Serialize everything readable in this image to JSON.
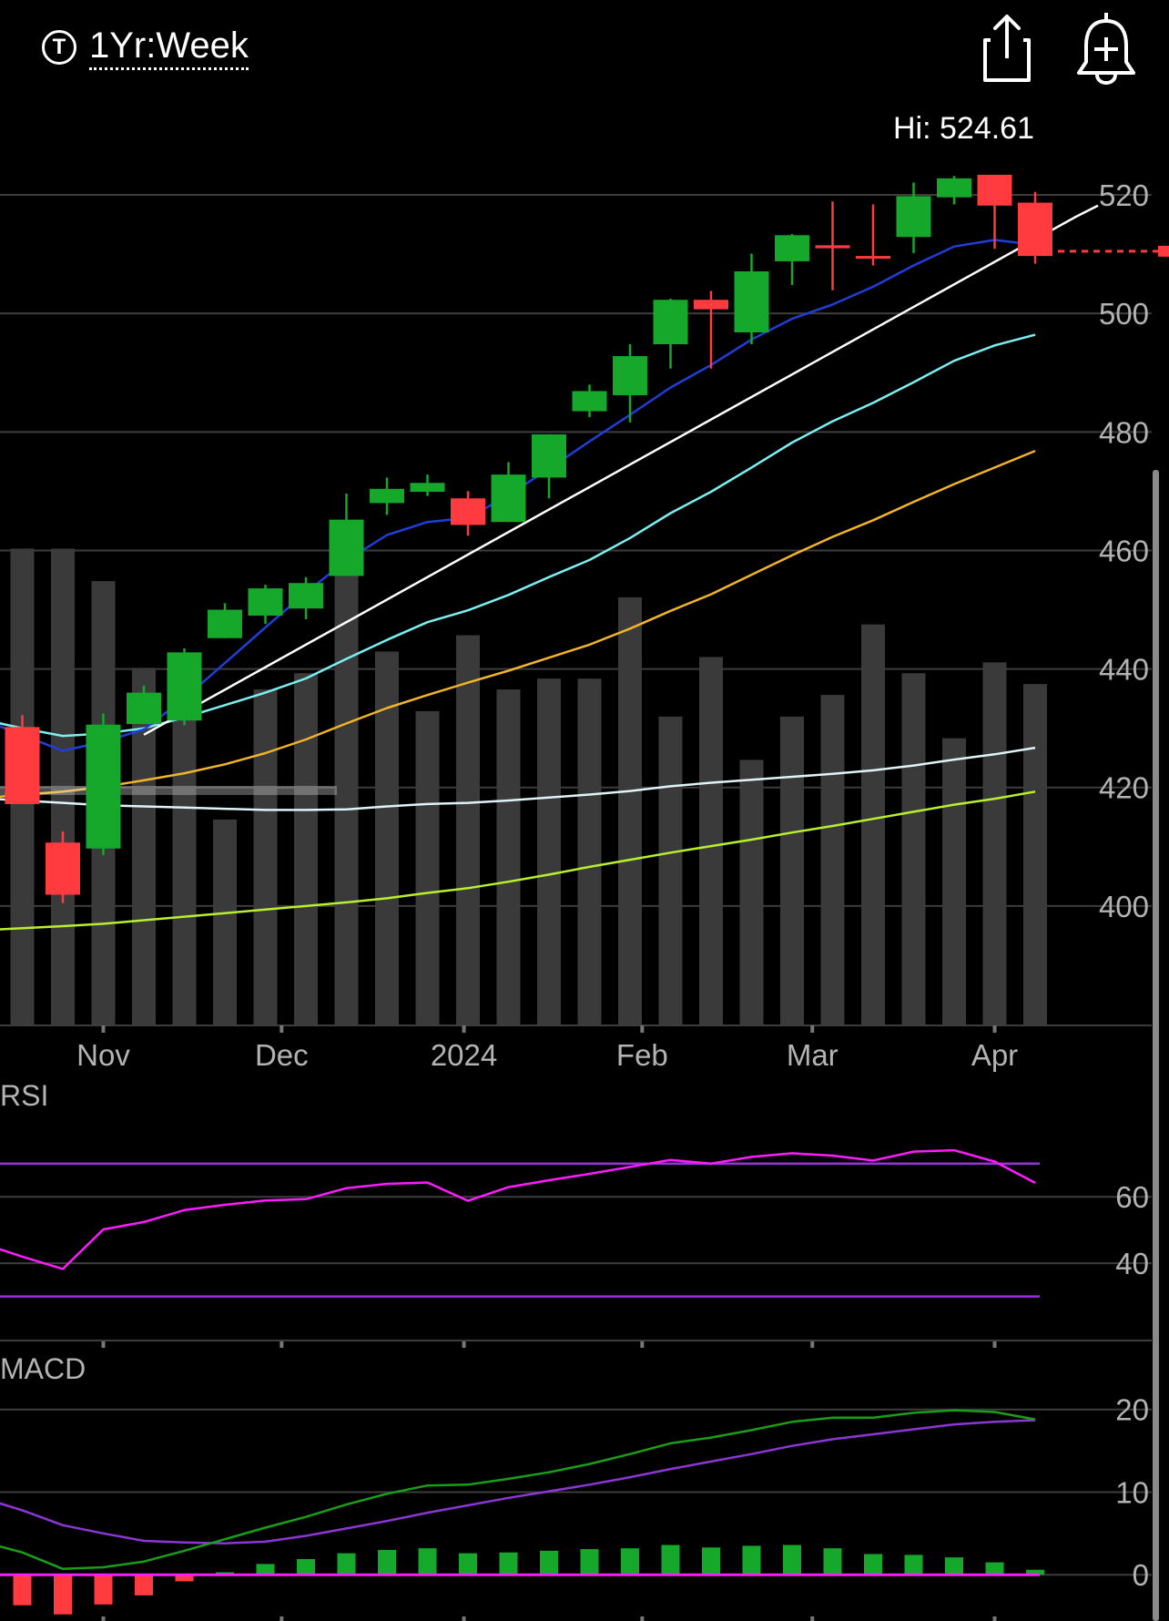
{
  "header": {
    "range_label": "1Yr:Week",
    "range_icon_letter": "T",
    "share_icon": "share-icon",
    "alert_icon": "add-alert-bell-icon"
  },
  "colors": {
    "up": "#15a82b",
    "down": "#ff3b3f",
    "volume": "#3a3a3a",
    "grid": "#3d3d3d",
    "ma_blue": "#1f3fd8",
    "trendline": "#ffffff",
    "ma_cyan": "#7af0f0",
    "ma_yellow": "#f2b52a",
    "ma_white": "#dff3f8",
    "ma_lime": "#b8f02e",
    "rsi_line": "#ff1cff",
    "rsi_band": "#9b2fe0",
    "macd_line": "#1a9e1a",
    "macd_signal": "#8d36d6",
    "macd_zero": "#ff1cff"
  },
  "chart_data": [
    {
      "type": "candlestick",
      "hi_label": "Hi: 524.61",
      "ylim": [
        378,
        528
      ],
      "yticks": [
        400,
        420,
        440,
        460,
        480,
        500,
        520
      ],
      "x_tick_labels": [
        "Nov",
        "Dec",
        "2024",
        "Feb",
        "Mar",
        "Apr"
      ],
      "x_tick_weeks": [
        2,
        6.4,
        10.9,
        15.3,
        19.5,
        24
      ],
      "last_price": 510.5,
      "candles": [
        {
          "w": 0,
          "o": 430.2,
          "c": 417.2,
          "h": 432.2,
          "l": 417.2
        },
        {
          "w": 1,
          "o": 410.7,
          "c": 401.9,
          "h": 412.6,
          "l": 400.5
        },
        {
          "w": 2,
          "o": 409.7,
          "c": 430.6,
          "h": 432.5,
          "l": 408.6
        },
        {
          "w": 3,
          "o": 430.7,
          "c": 436.0,
          "h": 437.2,
          "l": 430.7
        },
        {
          "w": 4,
          "o": 431.3,
          "c": 442.8,
          "h": 443.5,
          "l": 430.5
        },
        {
          "w": 5,
          "o": 445.2,
          "c": 450.0,
          "h": 451.1,
          "l": 445.2
        },
        {
          "w": 6,
          "o": 449.0,
          "c": 453.6,
          "h": 454.2,
          "l": 447.6
        },
        {
          "w": 7,
          "o": 450.2,
          "c": 454.5,
          "h": 455.5,
          "l": 448.4
        },
        {
          "w": 8,
          "o": 455.7,
          "c": 465.2,
          "h": 469.6,
          "l": 455.7
        },
        {
          "w": 9,
          "o": 468.0,
          "c": 470.4,
          "h": 472.3,
          "l": 466.0
        },
        {
          "w": 10,
          "o": 469.9,
          "c": 471.4,
          "h": 472.8,
          "l": 469.2
        },
        {
          "w": 11,
          "o": 468.8,
          "c": 464.3,
          "h": 470.0,
          "l": 462.5
        },
        {
          "w": 12,
          "o": 464.8,
          "c": 472.8,
          "h": 474.9,
          "l": 464.8
        },
        {
          "w": 13,
          "o": 472.3,
          "c": 479.6,
          "h": 479.6,
          "l": 468.8
        },
        {
          "w": 14,
          "o": 483.5,
          "c": 486.9,
          "h": 488.0,
          "l": 482.5
        },
        {
          "w": 15,
          "o": 486.2,
          "c": 492.8,
          "h": 494.8,
          "l": 481.6
        },
        {
          "w": 16,
          "o": 494.8,
          "c": 502.3,
          "h": 502.5,
          "l": 490.7
        },
        {
          "w": 17,
          "o": 502.3,
          "c": 500.7,
          "h": 503.8,
          "l": 490.7
        },
        {
          "w": 18,
          "o": 496.8,
          "c": 507.1,
          "h": 510.1,
          "l": 494.8
        },
        {
          "w": 19,
          "o": 508.8,
          "c": 513.2,
          "h": 513.4,
          "l": 504.8
        },
        {
          "w": 20,
          "o": 511.5,
          "c": 511.0,
          "h": 518.9,
          "l": 503.9
        },
        {
          "w": 21,
          "o": 509.7,
          "c": 509.3,
          "h": 518.4,
          "l": 508.1
        },
        {
          "w": 22,
          "o": 512.9,
          "c": 519.8,
          "h": 522.1,
          "l": 510.2
        },
        {
          "w": 23,
          "o": 519.6,
          "c": 522.8,
          "h": 523.2,
          "l": 518.4
        },
        {
          "w": 24,
          "o": 523.4,
          "c": 518.2,
          "h": 523.4,
          "l": 510.9
        },
        {
          "w": 25,
          "o": 518.7,
          "c": 509.7,
          "h": 520.5,
          "l": 508.4
        }
      ],
      "volume": [
        88,
        88,
        82,
        66,
        62,
        38,
        62,
        65,
        88,
        69,
        58,
        72,
        62,
        64,
        64,
        79,
        57,
        68,
        49,
        57,
        61,
        74,
        65,
        53,
        67,
        63
      ],
      "overlays": {
        "ma_blue": [
          [
            -1,
            431.5
          ],
          [
            1,
            426.2
          ],
          [
            2,
            427.7
          ],
          [
            3,
            429.8
          ],
          [
            4,
            435.0
          ],
          [
            5,
            441.0
          ],
          [
            6,
            447.0
          ],
          [
            7,
            452.9
          ],
          [
            8,
            458.3
          ],
          [
            9,
            462.6
          ],
          [
            10,
            464.8
          ],
          [
            11,
            465.5
          ],
          [
            12,
            469.3
          ],
          [
            13,
            473.8
          ],
          [
            14,
            478.4
          ],
          [
            15,
            482.9
          ],
          [
            16,
            487.5
          ],
          [
            17,
            491.3
          ],
          [
            18,
            495.6
          ],
          [
            19,
            499.1
          ],
          [
            20,
            501.5
          ],
          [
            21,
            504.5
          ],
          [
            22,
            508.1
          ],
          [
            23,
            511.3
          ],
          [
            24,
            512.4
          ],
          [
            25,
            511.6
          ]
        ],
        "trendline": [
          [
            3,
            428.9
          ],
          [
            26,
            516.3
          ],
          [
            26.55,
            518.2
          ]
        ],
        "ma_cyan": [
          [
            -1,
            431.5
          ],
          [
            0,
            430.0
          ],
          [
            1,
            428.7
          ],
          [
            2,
            429.1
          ],
          [
            3,
            430.0
          ],
          [
            4,
            431.8
          ],
          [
            5,
            433.9
          ],
          [
            6,
            436.0
          ],
          [
            7,
            438.4
          ],
          [
            8,
            441.7
          ],
          [
            9,
            444.9
          ],
          [
            10,
            447.9
          ],
          [
            11,
            449.9
          ],
          [
            12,
            452.5
          ],
          [
            13,
            455.5
          ],
          [
            14,
            458.4
          ],
          [
            15,
            462.1
          ],
          [
            16,
            466.3
          ],
          [
            17,
            469.9
          ],
          [
            18,
            474.0
          ],
          [
            19,
            478.2
          ],
          [
            20,
            481.8
          ],
          [
            21,
            484.9
          ],
          [
            22,
            488.4
          ],
          [
            23,
            492.0
          ],
          [
            24,
            494.6
          ],
          [
            25,
            496.4
          ]
        ],
        "ma_yellow": [
          [
            -1,
            418.2
          ],
          [
            1,
            419.3
          ],
          [
            2,
            420.1
          ],
          [
            3,
            421.2
          ],
          [
            4,
            422.4
          ],
          [
            5,
            423.9
          ],
          [
            6,
            425.8
          ],
          [
            7,
            428.1
          ],
          [
            8,
            430.8
          ],
          [
            9,
            433.4
          ],
          [
            10,
            435.6
          ],
          [
            11,
            437.7
          ],
          [
            12,
            439.7
          ],
          [
            13,
            441.9
          ],
          [
            14,
            444.1
          ],
          [
            15,
            446.8
          ],
          [
            16,
            449.8
          ],
          [
            17,
            452.6
          ],
          [
            18,
            455.9
          ],
          [
            19,
            459.2
          ],
          [
            20,
            462.3
          ],
          [
            21,
            465.1
          ],
          [
            22,
            468.2
          ],
          [
            23,
            471.2
          ],
          [
            24,
            474.0
          ],
          [
            25,
            476.8
          ]
        ],
        "ma_white": [
          [
            -1,
            418.2
          ],
          [
            1,
            417.4
          ],
          [
            2,
            417.0
          ],
          [
            3,
            416.8
          ],
          [
            4,
            416.6
          ],
          [
            5,
            416.4
          ],
          [
            6,
            416.2
          ],
          [
            7,
            416.2
          ],
          [
            8,
            416.3
          ],
          [
            9,
            416.8
          ],
          [
            10,
            417.2
          ],
          [
            11,
            417.4
          ],
          [
            12,
            417.8
          ],
          [
            13,
            418.3
          ],
          [
            14,
            418.8
          ],
          [
            15,
            419.4
          ],
          [
            16,
            420.2
          ],
          [
            17,
            420.8
          ],
          [
            18,
            421.3
          ],
          [
            19,
            421.8
          ],
          [
            20,
            422.3
          ],
          [
            21,
            422.9
          ],
          [
            22,
            423.7
          ],
          [
            23,
            424.7
          ],
          [
            24,
            425.6
          ],
          [
            25,
            426.7
          ]
        ],
        "ma_lime": [
          [
            -1,
            395.9
          ],
          [
            1,
            396.6
          ],
          [
            2,
            397.0
          ],
          [
            3,
            397.6
          ],
          [
            4,
            398.2
          ],
          [
            5,
            398.8
          ],
          [
            6,
            399.4
          ],
          [
            7,
            400.0
          ],
          [
            8,
            400.6
          ],
          [
            9,
            401.3
          ],
          [
            10,
            402.2
          ],
          [
            11,
            403.0
          ],
          [
            12,
            404.1
          ],
          [
            13,
            405.3
          ],
          [
            14,
            406.6
          ],
          [
            15,
            407.8
          ],
          [
            16,
            409.0
          ],
          [
            17,
            410.1
          ],
          [
            18,
            411.2
          ],
          [
            19,
            412.4
          ],
          [
            20,
            413.5
          ],
          [
            21,
            414.7
          ],
          [
            22,
            415.9
          ],
          [
            23,
            417.1
          ],
          [
            24,
            418.1
          ],
          [
            25,
            419.3
          ]
        ]
      }
    },
    {
      "type": "line",
      "title": "RSI",
      "ylim": [
        17.3,
        91.3
      ],
      "yticks": [
        40,
        60
      ],
      "band_levels": [
        30,
        70
      ],
      "series": [
        {
          "values": [
            [
              -1,
              46.0
            ],
            [
              0,
              42.0
            ],
            [
              1,
              38.3
            ],
            [
              2,
              50.2
            ],
            [
              3,
              52.4
            ],
            [
              4,
              56.0
            ],
            [
              5,
              57.6
            ],
            [
              6,
              58.9
            ],
            [
              7,
              59.3
            ],
            [
              8,
              62.6
            ],
            [
              9,
              63.9
            ],
            [
              10,
              64.3
            ],
            [
              11,
              58.8
            ],
            [
              12,
              62.9
            ],
            [
              13,
              65.0
            ],
            [
              14,
              66.9
            ],
            [
              15,
              69.0
            ],
            [
              16,
              71.1
            ],
            [
              17,
              70.0
            ],
            [
              18,
              72.0
            ],
            [
              19,
              73.1
            ],
            [
              20,
              72.4
            ],
            [
              21,
              70.9
            ],
            [
              22,
              73.6
            ],
            [
              23,
              74.0
            ],
            [
              24,
              70.6
            ],
            [
              25,
              64.2
            ]
          ]
        }
      ]
    },
    {
      "type": "line+bar",
      "title": "MACD",
      "ylim": [
        -5.6,
        24.6
      ],
      "yticks": [
        0,
        10,
        20
      ],
      "series": [
        {
          "values": [
            [
              -1,
              4.0
            ],
            [
              0,
              2.7
            ],
            [
              1,
              0.7
            ],
            [
              2,
              0.9
            ],
            [
              3,
              1.6
            ],
            [
              4,
              2.9
            ],
            [
              5,
              4.3
            ],
            [
              6,
              5.7
            ],
            [
              7,
              7.0
            ],
            [
              8,
              8.5
            ],
            [
              9,
              9.8
            ],
            [
              10,
              10.8
            ],
            [
              11,
              10.9
            ],
            [
              12,
              11.6
            ],
            [
              13,
              12.4
            ],
            [
              14,
              13.4
            ],
            [
              15,
              14.6
            ],
            [
              16,
              15.9
            ],
            [
              17,
              16.6
            ],
            [
              18,
              17.5
            ],
            [
              19,
              18.5
            ],
            [
              20,
              19.0
            ],
            [
              21,
              19.0
            ],
            [
              22,
              19.6
            ],
            [
              23,
              19.9
            ],
            [
              24,
              19.7
            ],
            [
              25,
              18.8
            ]
          ]
        },
        {
          "values": [
            [
              -1,
              9.3
            ],
            [
              0,
              7.8
            ],
            [
              1,
              6.0
            ],
            [
              2,
              5.0
            ],
            [
              3,
              4.1
            ],
            [
              4,
              3.9
            ],
            [
              5,
              3.8
            ],
            [
              6,
              4.0
            ],
            [
              7,
              4.7
            ],
            [
              8,
              5.6
            ],
            [
              9,
              6.5
            ],
            [
              10,
              7.5
            ],
            [
              11,
              8.4
            ],
            [
              12,
              9.3
            ],
            [
              13,
              10.1
            ],
            [
              14,
              10.9
            ],
            [
              15,
              11.8
            ],
            [
              16,
              12.8
            ],
            [
              17,
              13.7
            ],
            [
              18,
              14.6
            ],
            [
              19,
              15.6
            ],
            [
              20,
              16.4
            ],
            [
              21,
              17.0
            ],
            [
              22,
              17.6
            ],
            [
              23,
              18.2
            ],
            [
              24,
              18.5
            ],
            [
              25,
              18.7
            ]
          ]
        }
      ],
      "histogram": [
        -3.7,
        -4.8,
        -3.6,
        -2.5,
        -0.8,
        0.3,
        1.3,
        1.9,
        2.6,
        3.0,
        3.2,
        2.6,
        2.7,
        2.9,
        3.1,
        3.2,
        3.6,
        3.3,
        3.5,
        3.6,
        3.2,
        2.5,
        2.4,
        2.1,
        1.5,
        0.6
      ]
    }
  ]
}
